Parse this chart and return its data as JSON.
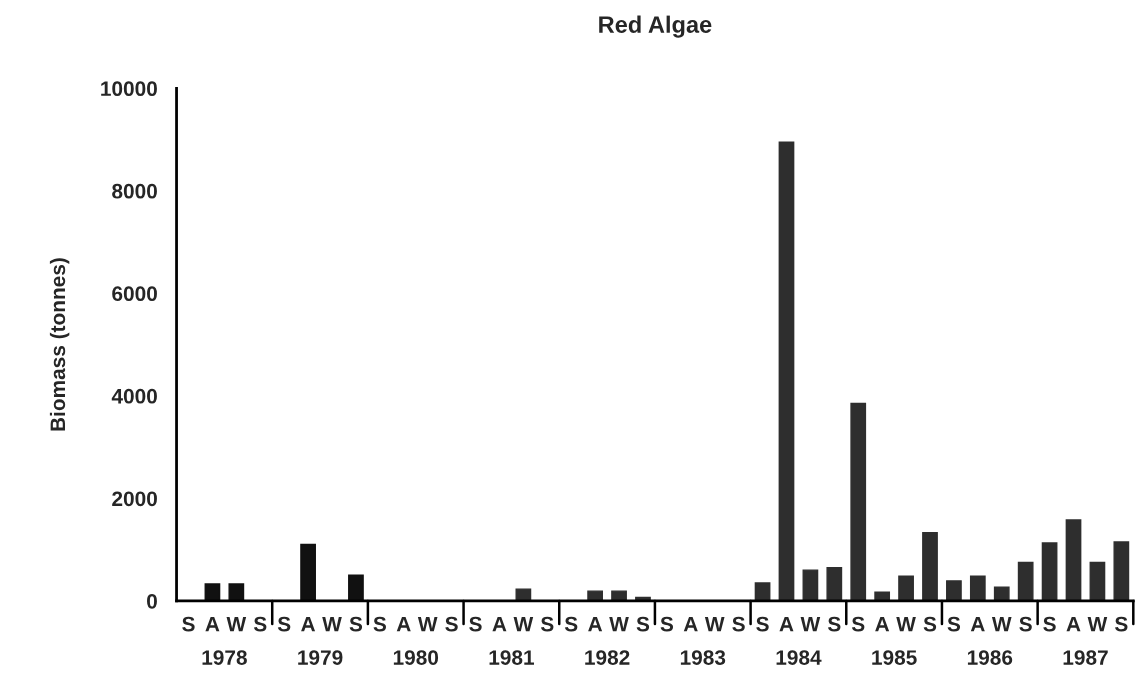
{
  "chart_data": {
    "type": "bar",
    "title": "Red Algae",
    "ylabel": "Biomass (tonnes)",
    "categories": [
      "S",
      "A",
      "W",
      "S",
      "S",
      "A",
      "W",
      "S",
      "S",
      "A",
      "W",
      "S",
      "S",
      "A",
      "W",
      "S",
      "S",
      "A",
      "W",
      "S",
      "S",
      "A",
      "W",
      "S",
      "S",
      "A",
      "W",
      "S",
      "S",
      "A",
      "W",
      "S",
      "S",
      "A",
      "W",
      "S",
      "S",
      "A",
      "W",
      "S"
    ],
    "values": [
      0,
      330,
      330,
      0,
      0,
      1100,
      0,
      500,
      0,
      0,
      0,
      0,
      0,
      0,
      230,
      0,
      0,
      190,
      190,
      70,
      0,
      0,
      0,
      0,
      350,
      8950,
      600,
      650,
      3850,
      170,
      480,
      1330,
      390,
      480,
      270,
      750,
      1130,
      1580,
      750,
      1150
    ],
    "colors": [
      "#111111",
      "#111111",
      "#111111",
      "#111111",
      "#111111",
      "#111111",
      "#111111",
      "#111111",
      "#2e2e2e",
      "#2e2e2e",
      "#2e2e2e",
      "#2e2e2e",
      "#2e2e2e",
      "#2e2e2e",
      "#2e2e2e",
      "#2e2e2e",
      "#2e2e2e",
      "#2e2e2e",
      "#2e2e2e",
      "#2e2e2e",
      "#2e2e2e",
      "#2e2e2e",
      "#2e2e2e",
      "#2e2e2e",
      "#2e2e2e",
      "#2e2e2e",
      "#2e2e2e",
      "#2e2e2e",
      "#2e2e2e",
      "#2e2e2e",
      "#2e2e2e",
      "#2e2e2e",
      "#2e2e2e",
      "#2e2e2e",
      "#2e2e2e",
      "#2e2e2e",
      "#2e2e2e",
      "#2e2e2e",
      "#2e2e2e",
      "#2e2e2e"
    ],
    "annotations": [
      "1978",
      "1979",
      "1980",
      "1981",
      "1982",
      "1983",
      "1984",
      "1985",
      "1986",
      "1987"
    ],
    "ylim": [
      0,
      10000
    ],
    "yticks": [
      0,
      2000,
      4000,
      6000,
      8000,
      10000
    ],
    "grid": false
  }
}
